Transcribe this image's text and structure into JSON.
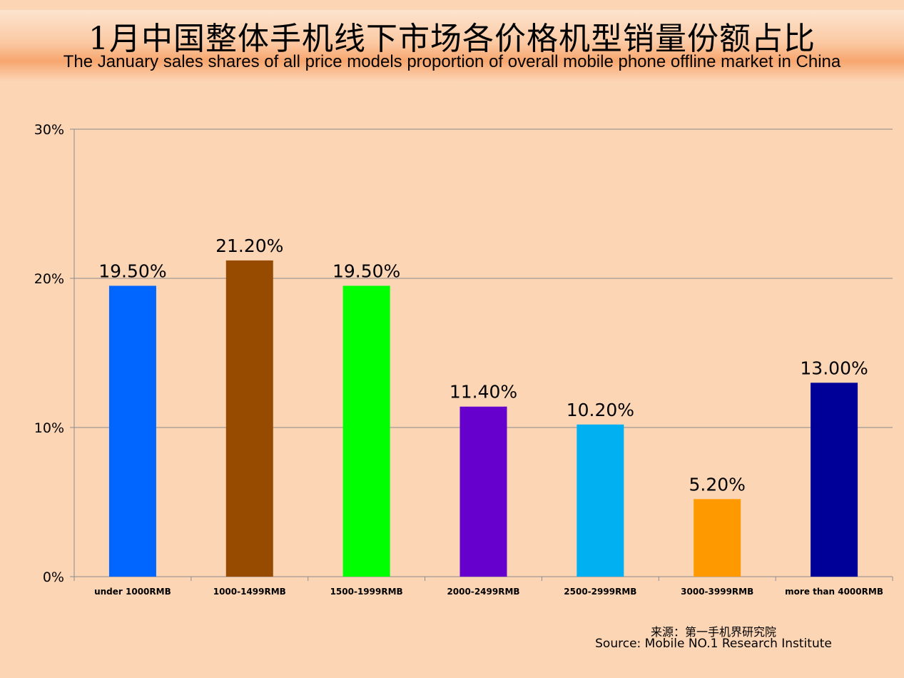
{
  "title_cn": "1月中国整体手机线下市场各价格机型销量份额占比",
  "title_en": "The January sales shares of all price models proportion of overall mobile phone offline market in China",
  "source_cn": "来源：第一手机界研究院",
  "source_en": "Source: Mobile NO.1 Research Institute",
  "chart_data": {
    "type": "bar",
    "categories": [
      "under 1000RMB",
      "1000-1499RMB",
      "1500-1999RMB",
      "2000-2499RMB",
      "2500-2999RMB",
      "3000-3999RMB",
      "more than 4000RMB"
    ],
    "values": [
      19.5,
      21.2,
      19.5,
      11.4,
      10.2,
      5.2,
      13.0
    ],
    "data_labels": [
      "19.50%",
      "21.20%",
      "19.50%",
      "11.40%",
      "10.20%",
      "5.20%",
      "13.00%"
    ],
    "colors": [
      "#0066ff",
      "#964b00",
      "#00ff00",
      "#6600cc",
      "#00b0f0",
      "#ff9900",
      "#000099"
    ],
    "ylim": [
      0,
      30
    ],
    "yticks": [
      "0%",
      "10%",
      "20%",
      "30%"
    ],
    "grid": true,
    "legend": "none"
  }
}
